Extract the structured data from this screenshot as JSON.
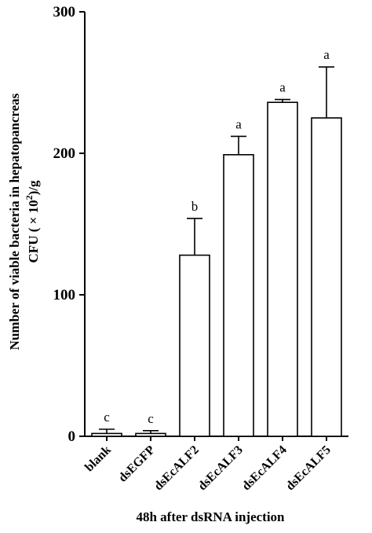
{
  "chart_data": {
    "type": "bar",
    "title": "",
    "xlabel": "48h after dsRNA injection",
    "ylabel": "Number of viable bacteria in hepatopancreas",
    "ylabel_line2": "CFU ( × 10 2 )/g",
    "ylabel_line2_parts": {
      "pre": "CFU ( × 10",
      "sup": "2",
      "post": ")/g"
    },
    "ylim": [
      0,
      300
    ],
    "yticks": [
      "0",
      "100",
      "200",
      "300"
    ],
    "categories": [
      "blank",
      "dsEGFP",
      "dsEcALF2",
      "dsEcALF3",
      "dsEcALF4",
      "dsEcALF5"
    ],
    "values": [
      2,
      2,
      128,
      199,
      236,
      225
    ],
    "error_upper": [
      3,
      2,
      26,
      13,
      2,
      36
    ],
    "significance": [
      "c",
      "c",
      "b",
      "a",
      "a",
      "a"
    ],
    "grid": false,
    "colors": {
      "bar_fill": "#ffffff",
      "bar_stroke": "#000000"
    }
  }
}
